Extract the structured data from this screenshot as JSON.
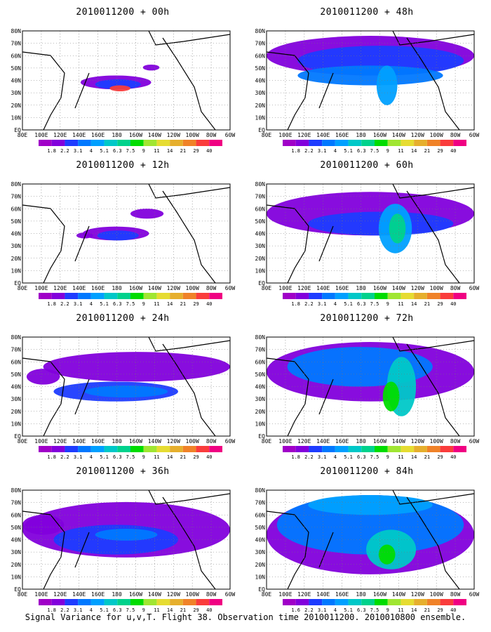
{
  "footer": "Signal Variance for u,v,T. Flight 38. Observation time 2010011200. 2010010800 ensemble.",
  "lat_labels": [
    "80N",
    "70N",
    "60N",
    "50N",
    "40N",
    "30N",
    "20N",
    "10N",
    "EQ"
  ],
  "lon_labels": [
    "80E",
    "100E",
    "120E",
    "140E",
    "160E",
    "180",
    "160W",
    "140W",
    "120W",
    "100W",
    "80W",
    "60W"
  ],
  "legend_values": [
    "1.8",
    "2.2",
    "3.1",
    "4",
    "5.1",
    "6.3",
    "7.5",
    "9",
    "11",
    "14",
    "21",
    "29",
    "40"
  ],
  "legend_values_alt": [
    "1.6",
    "2.2",
    "3.1",
    "4",
    "5.1",
    "6.3",
    "7.5",
    "9",
    "11",
    "14",
    "21",
    "29",
    "40"
  ],
  "legend_colors": [
    "#a000c8",
    "#8200dc",
    "#1e3cff",
    "#0078ff",
    "#00a0ff",
    "#00c8c8",
    "#00d28c",
    "#00dc00",
    "#a0e632",
    "#e6dc32",
    "#e6af2d",
    "#f08228",
    "#fa3c3c",
    "#f00082"
  ],
  "panels": [
    {
      "title": "2010011200 + 00h",
      "legend": "legend_values"
    },
    {
      "title": "2010011200 + 48h",
      "legend": "legend_values"
    },
    {
      "title": "2010011200 + 12h",
      "legend": "legend_values"
    },
    {
      "title": "2010011200 + 60h",
      "legend": "legend_values"
    },
    {
      "title": "2010011200 + 24h",
      "legend": "legend_values"
    },
    {
      "title": "2010011200 + 72h",
      "legend": "legend_values"
    },
    {
      "title": "2010011200 + 36h",
      "legend": "legend_values"
    },
    {
      "title": "2010011200 + 84h",
      "legend": "legend_values_alt"
    }
  ]
}
